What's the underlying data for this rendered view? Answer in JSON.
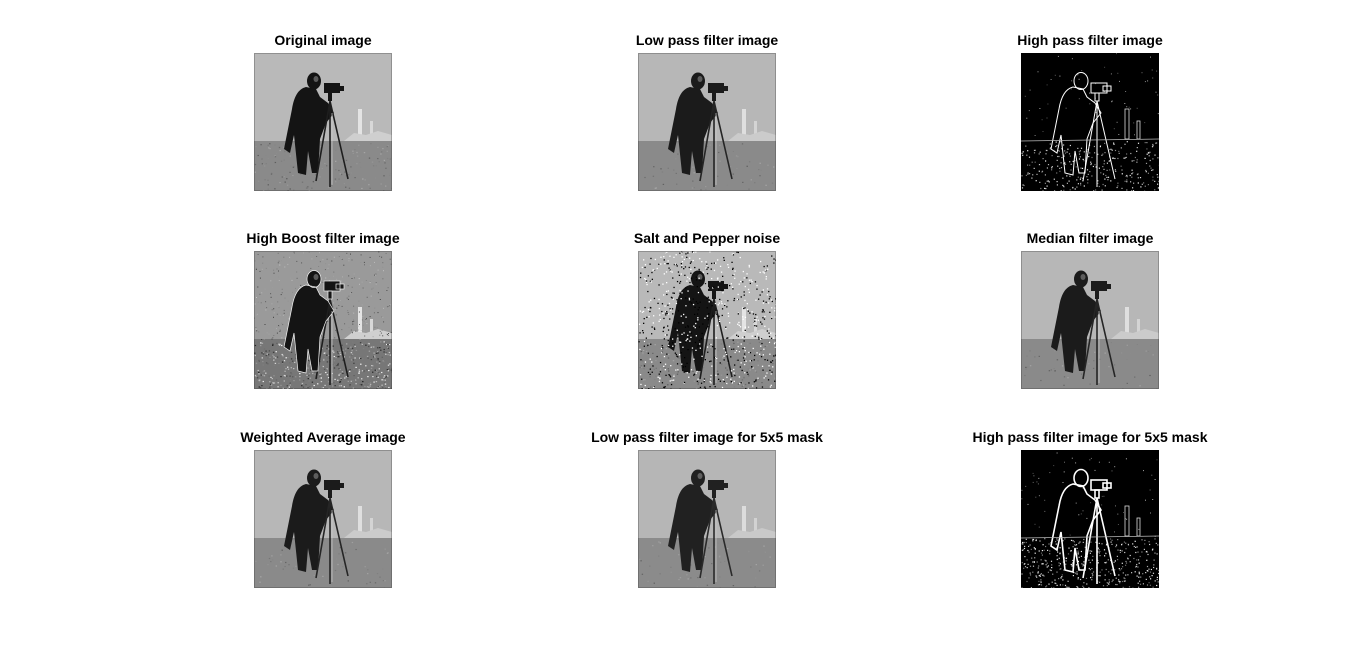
{
  "figure": {
    "panels": [
      {
        "title": "Original image",
        "variant": "original"
      },
      {
        "title": "Low pass filter image",
        "variant": "lowpass"
      },
      {
        "title": "High pass filter image",
        "variant": "highpass"
      },
      {
        "title": "High Boost filter image",
        "variant": "highboost"
      },
      {
        "title": "Salt and Pepper noise",
        "variant": "saltpepper"
      },
      {
        "title": "Median filter image",
        "variant": "median"
      },
      {
        "title": "Weighted Average image",
        "variant": "weighted"
      },
      {
        "title": "Low pass filter image for 5x5 mask",
        "variant": "lowpass5"
      },
      {
        "title": "High pass filter image for 5x5 mask",
        "variant": "highpass5"
      }
    ]
  }
}
